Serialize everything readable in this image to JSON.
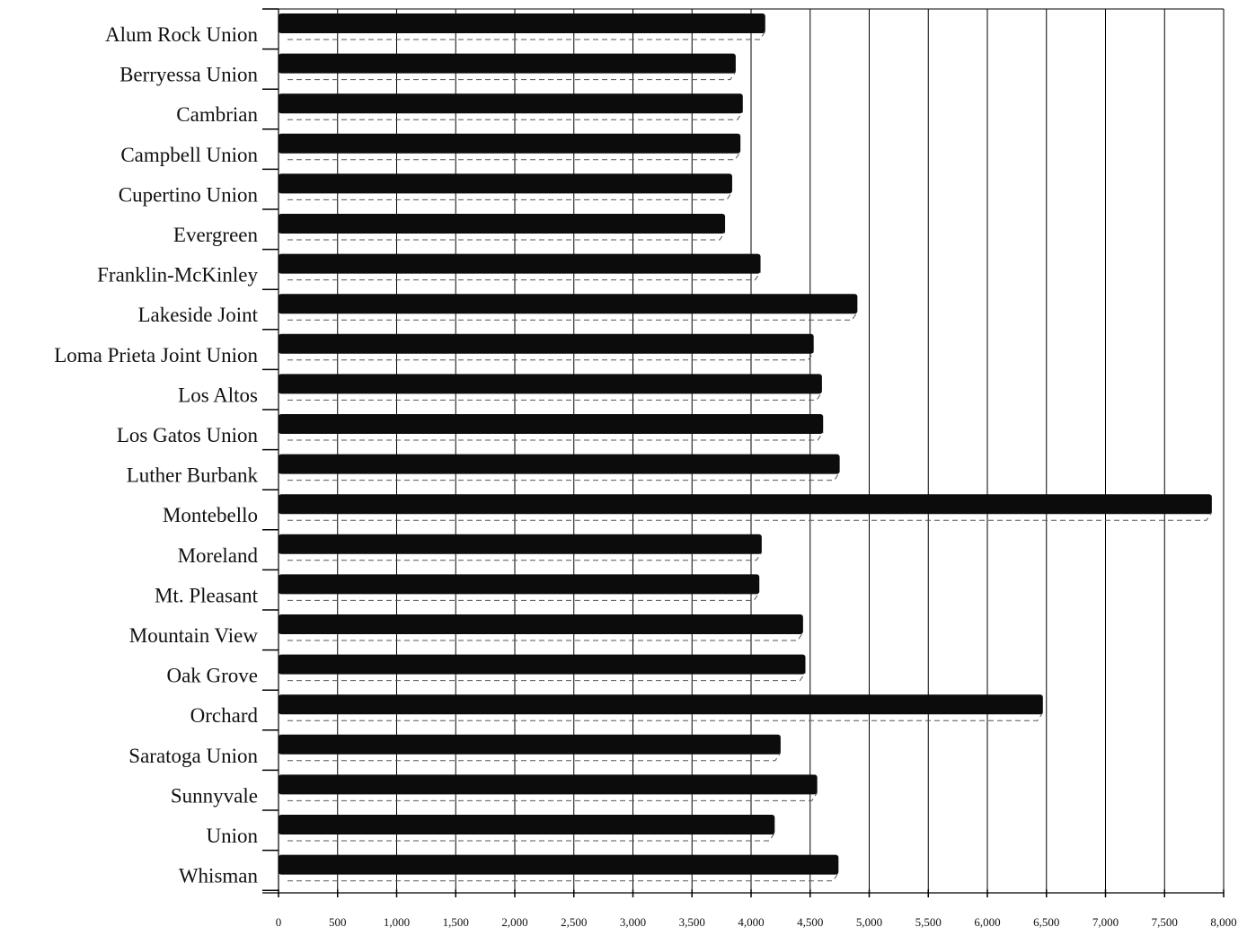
{
  "chart_data": {
    "type": "bar",
    "orientation": "horizontal",
    "title": "",
    "xlabel": "",
    "ylabel": "",
    "categories": [
      "Alum Rock Union",
      "Berryessa Union",
      "Cambrian",
      "Campbell Union",
      "Cupertino Union",
      "Evergreen",
      "Franklin-McKinley",
      "Lakeside Joint",
      "Loma Prieta Joint Union",
      "Los Altos",
      "Los Gatos Union",
      "Luther Burbank",
      "Montebello",
      "Moreland",
      "Mt. Pleasant",
      "Mountain View",
      "Oak Grove",
      "Orchard",
      "Saratoga Union",
      "Sunnyvale",
      "Union",
      "Whisman"
    ],
    "values": [
      4120,
      3870,
      3930,
      3910,
      3840,
      3780,
      4080,
      4900,
      4530,
      4600,
      4610,
      4750,
      7900,
      4090,
      4070,
      4440,
      4460,
      6470,
      4250,
      4560,
      4200,
      4740
    ],
    "xlim": [
      0,
      8000
    ],
    "xticks": [
      0,
      500,
      1000,
      1500,
      2000,
      2500,
      3000,
      3500,
      4000,
      4500,
      5000,
      5500,
      6000,
      6500,
      7000,
      7500,
      8000
    ],
    "xtick_labels": [
      "0",
      "500",
      "1,000",
      "1,500",
      "2,000",
      "2,500",
      "3,000",
      "3,500",
      "4,000",
      "4,500",
      "5,000",
      "5,500",
      "6,000",
      "6,500",
      "7,000",
      "7,500",
      "8,000"
    ],
    "grid": true,
    "legend": "none",
    "bar_color": "#0c0c0c"
  }
}
